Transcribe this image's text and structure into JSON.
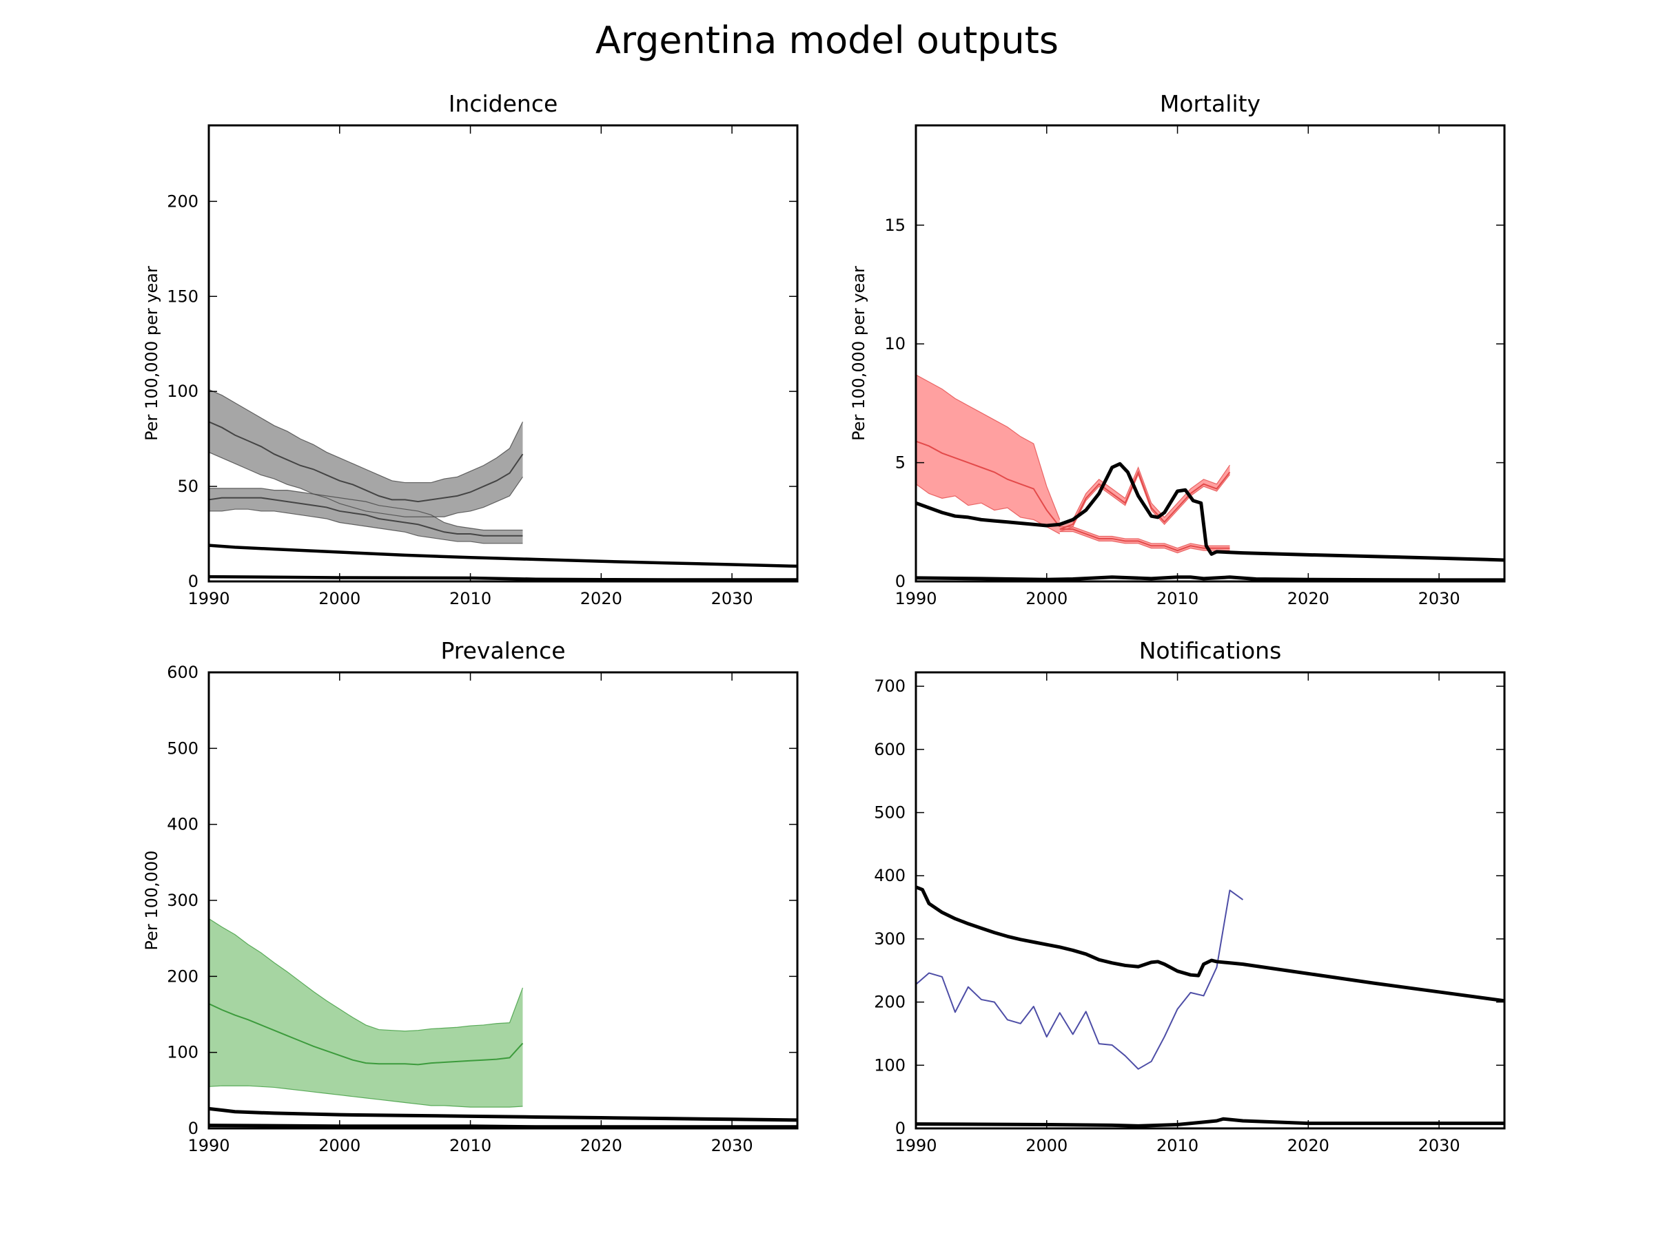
{
  "title": "Argentina model outputs",
  "chart_data": [
    {
      "type": "line",
      "title": "Incidence",
      "xlabel": "",
      "ylabel": "Per 100,000 per year",
      "xlim": [
        1990,
        2035
      ],
      "ylim": [
        0,
        240
      ],
      "x_ticks": [
        1990,
        2000,
        2010,
        2020,
        2030
      ],
      "y_ticks": [
        0,
        50,
        100,
        150,
        200
      ],
      "grid": false,
      "bands": [
        {
          "color": "#a6a6a6",
          "line_color": "#444444",
          "x": [
            1990,
            1991,
            1992,
            1993,
            1994,
            1995,
            1996,
            1997,
            1998,
            1999,
            2000,
            2001,
            2002,
            2003,
            2004,
            2005,
            2006,
            2007,
            2008,
            2009,
            2010,
            2011,
            2012,
            2013,
            2014
          ],
          "mid": [
            84,
            81,
            77,
            74,
            71,
            67,
            64,
            61,
            59,
            56,
            53,
            51,
            48,
            45,
            43,
            43,
            42,
            43,
            44,
            45,
            47,
            50,
            53,
            57,
            67
          ],
          "low": [
            68,
            65,
            62,
            59,
            56,
            54,
            51,
            49,
            46,
            44,
            41,
            39,
            37,
            36,
            35,
            34,
            34,
            34,
            34,
            36,
            37,
            39,
            42,
            45,
            55
          ],
          "high": [
            101,
            98,
            94,
            90,
            86,
            82,
            79,
            75,
            72,
            68,
            65,
            62,
            59,
            56,
            53,
            52,
            52,
            52,
            54,
            55,
            58,
            61,
            65,
            70,
            84
          ]
        },
        {
          "color": "#a6a6a6",
          "line_color": "#444444",
          "x": [
            1990,
            1991,
            1992,
            1993,
            1994,
            1995,
            1996,
            1997,
            1998,
            1999,
            2000,
            2001,
            2002,
            2003,
            2004,
            2005,
            2006,
            2007,
            2008,
            2009,
            2010,
            2011,
            2012,
            2013,
            2014
          ],
          "mid": [
            43,
            44,
            44,
            44,
            44,
            43,
            42,
            41,
            40,
            39,
            37,
            36,
            35,
            33,
            32,
            31,
            30,
            28,
            26,
            25,
            25,
            24,
            24,
            24,
            24
          ],
          "low": [
            37,
            37,
            38,
            38,
            37,
            37,
            36,
            35,
            34,
            33,
            31,
            30,
            29,
            28,
            27,
            26,
            24,
            23,
            22,
            21,
            21,
            20,
            20,
            20,
            20
          ],
          "high": [
            49,
            49,
            49,
            49,
            49,
            48,
            48,
            47,
            46,
            45,
            44,
            43,
            42,
            40,
            39,
            38,
            37,
            35,
            31,
            29,
            28,
            27,
            27,
            27,
            27
          ]
        }
      ],
      "series": [
        {
          "color": "#000000",
          "width": 4.5,
          "x": [
            1990,
            1991,
            1992,
            1995,
            2000,
            2005,
            2010,
            2015,
            2020,
            2025,
            2030,
            2035
          ],
          "y": [
            19,
            18.5,
            18,
            17,
            15.4,
            13.8,
            12.6,
            11.6,
            10.6,
            9.7,
            8.9,
            8.0
          ]
        },
        {
          "color": "#000000",
          "width": 4.5,
          "x": [
            1990,
            2000,
            2010,
            2015,
            2020,
            2025,
            2030,
            2035
          ],
          "y": [
            2.5,
            2.0,
            1.8,
            1.2,
            1.0,
            0.9,
            0.9,
            0.9
          ]
        }
      ]
    },
    {
      "type": "line",
      "title": "Mortality",
      "xlabel": "",
      "ylabel": "Per 100,000 per year",
      "xlim": [
        1990,
        2035
      ],
      "ylim": [
        0,
        19.2
      ],
      "x_ticks": [
        1990,
        2000,
        2010,
        2020,
        2030
      ],
      "y_ticks": [
        0,
        5,
        10,
        15
      ],
      "grid": false,
      "bands": [
        {
          "color": "#ffa0a0",
          "line_color": "#e34a4a",
          "x": [
            1990,
            1991,
            1992,
            1993,
            1994,
            1995,
            1996,
            1997,
            1998,
            1999,
            2000,
            2001
          ],
          "mid": [
            5.9,
            5.7,
            5.4,
            5.2,
            5.0,
            4.8,
            4.6,
            4.3,
            4.1,
            3.9,
            3.0,
            2.3
          ],
          "low": [
            4.1,
            3.7,
            3.5,
            3.6,
            3.2,
            3.3,
            3.0,
            3.1,
            2.7,
            2.6,
            2.3,
            2.0
          ],
          "high": [
            8.7,
            8.4,
            8.1,
            7.7,
            7.4,
            7.1,
            6.8,
            6.5,
            6.1,
            5.8,
            4.0,
            2.6
          ]
        },
        {
          "color": "#ffa0a0",
          "line_color": "#e34a4a",
          "x": [
            2001,
            2002,
            2003,
            2004,
            2005,
            2006,
            2007,
            2008,
            2009,
            2010,
            2011,
            2012,
            2013,
            2014
          ],
          "mid": [
            2.2,
            2.4,
            3.5,
            4.1,
            3.7,
            3.3,
            4.6,
            3.1,
            2.5,
            3.1,
            3.7,
            4.1,
            3.9,
            4.6
          ],
          "low": [
            2.1,
            2.3,
            3.4,
            4.0,
            3.6,
            3.2,
            4.5,
            3.0,
            2.4,
            3.0,
            3.6,
            4.0,
            3.8,
            4.5
          ],
          "high": [
            2.4,
            2.6,
            3.7,
            4.3,
            3.9,
            3.5,
            4.8,
            3.3,
            2.7,
            3.3,
            3.9,
            4.3,
            4.1,
            4.9
          ]
        },
        {
          "color": "#ffa0a0",
          "line_color": "#e34a4a",
          "x": [
            2001,
            2002,
            2003,
            2004,
            2005,
            2006,
            2007,
            2008,
            2009,
            2010,
            2011,
            2012,
            2013,
            2014
          ],
          "mid": [
            2.2,
            2.2,
            2.0,
            1.8,
            1.8,
            1.7,
            1.7,
            1.5,
            1.5,
            1.3,
            1.5,
            1.4,
            1.4,
            1.4
          ],
          "low": [
            2.1,
            2.1,
            1.9,
            1.7,
            1.7,
            1.6,
            1.6,
            1.4,
            1.4,
            1.2,
            1.4,
            1.3,
            1.3,
            1.3
          ],
          "high": [
            2.3,
            2.3,
            2.1,
            1.9,
            1.9,
            1.8,
            1.8,
            1.6,
            1.6,
            1.4,
            1.6,
            1.5,
            1.5,
            1.5
          ]
        }
      ],
      "series": [
        {
          "color": "#000000",
          "width": 5,
          "x": [
            1990,
            1991,
            1992,
            1993,
            1994,
            1995,
            1996,
            1997,
            1998,
            1999,
            2000,
            2001,
            2002,
            2003,
            2004,
            2005,
            2005.6,
            2006.2,
            2007,
            2008,
            2008.5,
            2009,
            2010,
            2010.6,
            2011.2,
            2011.8,
            2012.2,
            2012.6,
            2013,
            2015,
            2020,
            2025,
            2030,
            2035
          ],
          "y": [
            3.3,
            3.1,
            2.9,
            2.75,
            2.7,
            2.6,
            2.55,
            2.5,
            2.45,
            2.4,
            2.35,
            2.4,
            2.6,
            3.0,
            3.7,
            4.8,
            4.95,
            4.6,
            3.6,
            2.75,
            2.7,
            2.9,
            3.8,
            3.85,
            3.4,
            3.3,
            1.5,
            1.15,
            1.25,
            1.2,
            1.12,
            1.05,
            0.98,
            0.9
          ]
        },
        {
          "color": "#000000",
          "width": 5,
          "x": [
            1990,
            1995,
            2000,
            2002,
            2005,
            2008,
            2010,
            2011,
            2012,
            2014,
            2016,
            2020,
            2025,
            2030,
            2035
          ],
          "y": [
            0.15,
            0.12,
            0.08,
            0.1,
            0.18,
            0.12,
            0.18,
            0.18,
            0.12,
            0.18,
            0.1,
            0.08,
            0.07,
            0.06,
            0.06
          ]
        }
      ]
    },
    {
      "type": "line",
      "title": "Prevalence",
      "xlabel": "",
      "ylabel": "Per 100,000",
      "xlim": [
        1990,
        2035
      ],
      "ylim": [
        0,
        600
      ],
      "x_ticks": [
        1990,
        2000,
        2010,
        2020,
        2030
      ],
      "y_ticks": [
        0,
        100,
        200,
        300,
        400,
        500,
        600
      ],
      "grid": false,
      "bands": [
        {
          "color": "#a6d5a2",
          "line_color": "#3c9b3c",
          "x": [
            1990,
            1991,
            1992,
            1993,
            1994,
            1995,
            1996,
            1997,
            1998,
            1999,
            2000,
            2001,
            2002,
            2003,
            2004,
            2005,
            2006,
            2007,
            2008,
            2009,
            2010,
            2011,
            2012,
            2013,
            2014
          ],
          "mid": [
            164,
            156,
            149,
            143,
            136,
            129,
            122,
            115,
            108,
            102,
            96,
            90,
            86,
            85,
            85,
            85,
            84,
            86,
            87,
            88,
            89,
            90,
            91,
            93,
            112
          ],
          "low": [
            55,
            56,
            56,
            56,
            55,
            54,
            52,
            50,
            48,
            46,
            44,
            42,
            40,
            38,
            36,
            34,
            32,
            30,
            30,
            29,
            28,
            28,
            28,
            28,
            29
          ],
          "high": [
            276,
            265,
            255,
            242,
            231,
            218,
            206,
            193,
            180,
            168,
            157,
            146,
            136,
            130,
            129,
            128,
            129,
            131,
            132,
            133,
            135,
            136,
            138,
            139,
            185
          ]
        }
      ],
      "series": [
        {
          "color": "#000000",
          "width": 5,
          "x": [
            1990,
            1991,
            1992,
            1995,
            2000,
            2005,
            2010,
            2015,
            2020,
            2025,
            2030,
            2035
          ],
          "y": [
            26,
            24,
            22,
            20,
            18,
            17,
            16,
            15,
            14,
            13,
            12,
            11
          ]
        },
        {
          "color": "#000000",
          "width": 5,
          "x": [
            1990,
            2000,
            2005,
            2010,
            2015,
            2020,
            2025,
            2030,
            2035
          ],
          "y": [
            4,
            3,
            3,
            3,
            2,
            2,
            2,
            2,
            2
          ]
        }
      ]
    },
    {
      "type": "line",
      "title": "Notifications",
      "xlabel": "",
      "ylabel": "",
      "xlim": [
        1990,
        2035
      ],
      "ylim": [
        0,
        722
      ],
      "x_ticks": [
        1990,
        2000,
        2010,
        2020,
        2030
      ],
      "y_ticks": [
        0,
        100,
        200,
        300,
        400,
        500,
        600,
        700
      ],
      "grid": false,
      "bands": [],
      "series": [
        {
          "color": "#4d4da6",
          "width": 2,
          "x": [
            1990,
            1991,
            1992,
            1993,
            1994,
            1995,
            1996,
            1997,
            1998,
            1999,
            2000,
            2001,
            2002,
            2003,
            2004,
            2005,
            2006,
            2007,
            2008,
            2009,
            2010,
            2011,
            2012,
            2013,
            2014,
            2015
          ],
          "y": [
            228,
            246,
            240,
            184,
            224,
            204,
            200,
            172,
            166,
            193,
            145,
            183,
            149,
            185,
            134,
            132,
            115,
            94,
            106,
            145,
            189,
            215,
            210,
            255,
            377,
            362
          ]
        },
        {
          "color": "#000000",
          "width": 5,
          "x": [
            1990,
            1990.5,
            1991,
            1992,
            1993,
            1994,
            1995,
            1996,
            1997,
            1998,
            1999,
            2000,
            2001,
            2002,
            2003,
            2004,
            2005,
            2006,
            2007,
            2008,
            2008.5,
            2009,
            2010,
            2011,
            2011.6,
            2012,
            2012.6,
            2013,
            2014,
            2015,
            2020,
            2025,
            2030,
            2035
          ],
          "y": [
            382,
            378,
            356,
            342,
            332,
            324,
            317,
            310,
            304,
            299,
            295,
            291,
            287,
            282,
            276,
            267,
            262,
            258,
            256,
            263,
            264,
            260,
            249,
            243,
            242,
            260,
            266,
            264,
            262,
            260,
            245,
            230,
            216,
            202
          ]
        },
        {
          "color": "#000000",
          "width": 5,
          "x": [
            1990,
            2000,
            2005,
            2007,
            2010,
            2012,
            2013,
            2013.5,
            2014,
            2015,
            2020,
            2025,
            2030,
            2035
          ],
          "y": [
            7,
            6,
            5,
            4,
            6,
            10,
            12,
            15,
            14,
            12,
            8,
            8,
            8,
            8
          ]
        }
      ]
    }
  ]
}
